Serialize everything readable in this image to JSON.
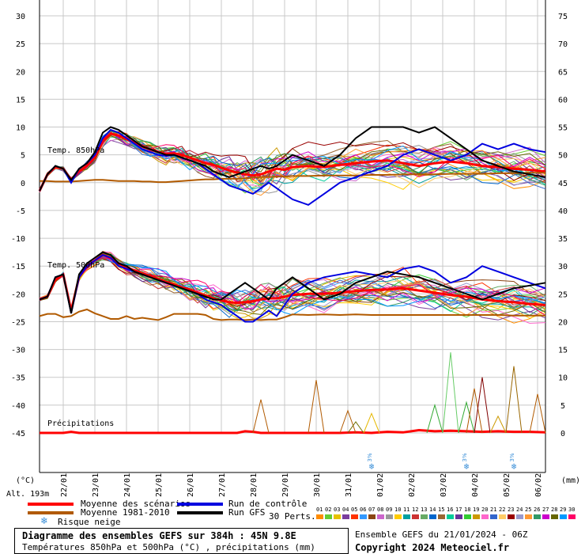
{
  "chart_data": {
    "type": "line",
    "title": "Diagramme des ensembles GEFS sur 384h : 45N 9.8E",
    "subtitle": "Températures 850hPa et 500hPa (°C) , précipitations (mm)",
    "left_unit": "(°C)",
    "right_unit": "(mm)",
    "altitude": "Alt. 193m",
    "x_dates": [
      "22/01",
      "23/01",
      "24/01",
      "25/01",
      "26/01",
      "27/01",
      "28/01",
      "29/01",
      "30/01",
      "31/01",
      "01/02",
      "02/02",
      "03/02",
      "04/02",
      "05/02",
      "06/02"
    ],
    "ylim": [
      -45,
      30
    ],
    "left_ticks": [
      "30",
      "25",
      "20",
      "15",
      "10",
      "5",
      "0",
      "-5",
      "-10",
      "-15",
      "-20",
      "-25",
      "-30",
      "-35",
      "-40",
      "-45"
    ],
    "right_ticks": [
      "75",
      "70",
      "65",
      "60",
      "55",
      "50",
      "45",
      "40",
      "35",
      "30",
      "25",
      "20",
      "15",
      "10",
      "5",
      "0"
    ],
    "panel_labels": [
      "Temp. 850hPa",
      "Temp. 500hPa",
      "Précipitations"
    ],
    "x_hours": [
      0,
      6,
      12,
      18,
      24,
      30,
      36,
      42,
      48,
      54,
      60,
      66,
      72,
      78,
      84,
      90,
      96,
      102,
      108,
      114,
      120,
      126,
      132,
      138,
      144,
      150,
      156,
      162,
      168,
      174,
      180,
      186,
      192,
      204,
      216,
      228,
      240,
      252,
      264,
      276,
      288,
      300,
      312,
      324,
      336,
      348,
      360,
      372,
      384
    ],
    "series": [
      {
        "name": "Moyenne des scénarios 850",
        "color": "#ff0000",
        "values": [
          -1.5,
          1.5,
          2.8,
          2.5,
          0.5,
          2,
          3,
          4.5,
          7.5,
          8.8,
          8.5,
          7.8,
          7.2,
          6.5,
          6,
          5.5,
          5.2,
          5.3,
          5,
          4.5,
          4,
          3.5,
          3.2,
          2.7,
          2.2,
          1.8,
          1.5,
          1.3,
          1.5,
          2,
          2.5,
          2.3,
          2.8,
          3.0,
          2.8,
          3.2,
          3.5,
          3.8,
          4.0,
          3.5,
          3.0,
          3.5,
          3.8,
          3.5,
          3.0,
          2.8,
          2.5,
          2.3,
          2.0
        ]
      },
      {
        "name": "Moyenne 1981-2010 850",
        "color": "#b15a00",
        "values": [
          0.3,
          0.3,
          0.2,
          0.2,
          0.2,
          0.3,
          0.4,
          0.5,
          0.5,
          0.4,
          0.3,
          0.3,
          0.3,
          0.2,
          0.2,
          0.1,
          0.1,
          0.2,
          0.3,
          0.4,
          0.5,
          0.6,
          0.6,
          0.7,
          0.7,
          0.7,
          0.8,
          0.9,
          1.0,
          1.0,
          1.1,
          1.1,
          1.2,
          1.2,
          1.3,
          1.3,
          1.3,
          1.4,
          1.4,
          1.5,
          1.5,
          1.5,
          1.6,
          1.6,
          1.6,
          1.7,
          1.7,
          1.8,
          1.8
        ]
      },
      {
        "name": "Run de contrôle 850",
        "color": "#0000e0",
        "values": [
          -1.5,
          1.5,
          3,
          2.5,
          0,
          2.5,
          3.5,
          5,
          8,
          9.5,
          9,
          8,
          7,
          6,
          5.5,
          5,
          4.8,
          5,
          4.5,
          4,
          3.5,
          2.5,
          1.5,
          0.5,
          -0.5,
          -1,
          -1.5,
          -2,
          -1,
          0,
          -1,
          -2,
          -3,
          -4,
          -2,
          0,
          1,
          2,
          3,
          5,
          6,
          5,
          4,
          5,
          7,
          6,
          7,
          6,
          5.5
        ]
      },
      {
        "name": "Run GFS 850",
        "color": "#000000",
        "values": [
          -1.5,
          1.5,
          3,
          2.5,
          0.5,
          2.5,
          3.5,
          5.5,
          9,
          10,
          9.5,
          8.5,
          7.5,
          6.5,
          6,
          5.5,
          5,
          5,
          4.5,
          4,
          3.5,
          3,
          2,
          1.5,
          1,
          1.5,
          2,
          2.5,
          3,
          2.5,
          3,
          4,
          5,
          4,
          3,
          5,
          8,
          10,
          10,
          10,
          9,
          10,
          8,
          6,
          4,
          3,
          2,
          1.5,
          1
        ]
      },
      {
        "name": "Moyenne des scénarios 500",
        "color": "#ff0000",
        "values": [
          -21,
          -20.5,
          -17.5,
          -16.5,
          -23,
          -17,
          -15,
          -14,
          -13,
          -13.5,
          -14.5,
          -15.2,
          -15.8,
          -16.3,
          -16.8,
          -17.3,
          -17.8,
          -18.3,
          -18.8,
          -19.2,
          -19.8,
          -20.3,
          -20.8,
          -21.2,
          -21.5,
          -21.6,
          -21.5,
          -21.3,
          -21.0,
          -20.8,
          -20.8,
          -20.5,
          -20.2,
          -20.0,
          -20.0,
          -19.8,
          -19.5,
          -19.3,
          -19.2,
          -19.0,
          -19.4,
          -19.8,
          -20.2,
          -20.5,
          -21.0,
          -21.3,
          -21.5,
          -21.8,
          -22.0
        ]
      },
      {
        "name": "Moyenne 1981-2010 500",
        "color": "#b15a00",
        "values": [
          -24,
          -23.6,
          -23.6,
          -24.2,
          -24.0,
          -23.2,
          -22.8,
          -23.5,
          -24.0,
          -24.5,
          -24.5,
          -24.0,
          -24.5,
          -24.3,
          -24.5,
          -24.7,
          -24.2,
          -23.6,
          -23.6,
          -23.6,
          -23.6,
          -23.8,
          -24.5,
          -24.7,
          -24.6,
          -24.6,
          -24.7,
          -24.6,
          -24.7,
          -24.6,
          -24.6,
          -24.2,
          -23.7,
          -23.8,
          -23.7,
          -23.8,
          -23.7,
          -23.8,
          -23.8,
          -23.8,
          -23.8,
          -23.8,
          -23.8,
          -23.8,
          -23.8,
          -23.8,
          -23.9,
          -23.9,
          -23.9
        ]
      },
      {
        "name": "Run de contrôle 500",
        "color": "#0000e0",
        "values": [
          -21,
          -20.5,
          -17,
          -16.5,
          -23.5,
          -17,
          -15,
          -14,
          -13,
          -13.5,
          -15,
          -15.5,
          -16,
          -16.5,
          -17,
          -17.5,
          -18,
          -18.5,
          -19,
          -19.5,
          -20,
          -21,
          -21.5,
          -22,
          -23,
          -24,
          -25,
          -25,
          -24,
          -23,
          -24,
          -22,
          -20,
          -18,
          -17,
          -16.5,
          -16,
          -16.5,
          -17,
          -15.5,
          -15,
          -16,
          -18,
          -17,
          -15,
          -16,
          -17,
          -18,
          -19
        ]
      },
      {
        "name": "Run GFS 500",
        "color": "#000000",
        "values": [
          -21,
          -20.5,
          -17,
          -16.5,
          -23.5,
          -16.5,
          -14.5,
          -13.5,
          -12.5,
          -13,
          -14.5,
          -15,
          -16,
          -16.5,
          -17,
          -17.5,
          -18,
          -18.5,
          -19,
          -19.5,
          -20,
          -20.5,
          -21,
          -21,
          -20,
          -19,
          -18,
          -19,
          -20,
          -21,
          -19,
          -18,
          -17,
          -19,
          -21,
          -20,
          -18,
          -17,
          -16,
          -16.5,
          -17,
          -18,
          -19,
          -20,
          -21,
          -20,
          -19,
          -18.5,
          -18
        ]
      },
      {
        "name": "Précipitations moyenne",
        "color": "#ff0000",
        "values": [
          0,
          0,
          0,
          0,
          0.2,
          0,
          0,
          0,
          0,
          0,
          0,
          0,
          0,
          0,
          0,
          0,
          0,
          0,
          0,
          0,
          0,
          0,
          0,
          0,
          0,
          0,
          0.3,
          0.2,
          0,
          0,
          0,
          0,
          0,
          0,
          0,
          0,
          0.1,
          0,
          0.2,
          0.1,
          0.5,
          0.3,
          0.4,
          0.3,
          0.2,
          0.3,
          0.2,
          0.2,
          0.1
        ]
      }
    ],
    "precip_spikes": [
      {
        "hour": 168,
        "mm": 6,
        "color": "#b15a00"
      },
      {
        "hour": 210,
        "mm": 9.5,
        "color": "#b15a00"
      },
      {
        "hour": 234,
        "mm": 4,
        "color": "#b15a00"
      },
      {
        "hour": 240,
        "mm": 2,
        "color": "#6e6e00"
      },
      {
        "hour": 252,
        "mm": 3.5,
        "color": "#e6b800"
      },
      {
        "hour": 300,
        "mm": 5,
        "color": "#33aa33"
      },
      {
        "hour": 312,
        "mm": 14.5,
        "color": "#66cc66"
      },
      {
        "hour": 324,
        "mm": 5.5,
        "color": "#33aa33"
      },
      {
        "hour": 330,
        "mm": 8,
        "color": "#b15a00"
      },
      {
        "hour": 336,
        "mm": 10,
        "color": "#800000"
      },
      {
        "hour": 348,
        "mm": 3,
        "color": "#cc9900"
      },
      {
        "hour": 360,
        "mm": 12,
        "color": "#996600"
      },
      {
        "hour": 378,
        "mm": 7,
        "color": "#b15a00"
      }
    ],
    "snow_risk_hours": [
      252,
      324,
      360
    ],
    "snow_label": "3%",
    "perturbation_colors": [
      "#ff8c00",
      "#66cc33",
      "#e6c200",
      "#7a3e9d",
      "#ff3300",
      "#3399ff",
      "#8b4513",
      "#cc66cc",
      "#999999",
      "#ffcc00",
      "#00a0a0",
      "#cc3333",
      "#66aa66",
      "#0066cc",
      "#996633",
      "#00cc99",
      "#663399",
      "#33cc33",
      "#cc9900",
      "#ff66cc",
      "#3366cc",
      "#ffcc66",
      "#990000",
      "#9999cc",
      "#ff9933",
      "#339966",
      "#cc00cc",
      "#666600",
      "#0099ff",
      "#ff0066"
    ]
  },
  "legend": {
    "mean": "Moyenne des scénarios",
    "clim": "Moyenne 1981-2010",
    "snow": "Risque neige",
    "control": "Run de contrôle",
    "gfs": "Run GFS",
    "perts": "30 Perts.",
    "pert_numbers": [
      "01",
      "02",
      "03",
      "04",
      "05",
      "06",
      "07",
      "08",
      "09",
      "10",
      "11",
      "12",
      "13",
      "14",
      "15",
      "16",
      "17",
      "18",
      "19",
      "20",
      "21",
      "22",
      "23",
      "24",
      "25",
      "26",
      "27",
      "28",
      "29",
      "30"
    ]
  },
  "footer": {
    "title": "Diagramme des ensembles GEFS sur 384h : 45N 9.8E",
    "subtitle": "Températures 850hPa et 500hPa (°C) , précipitations (mm)",
    "ensemble": "Ensemble GEFS du 21/01/2024 - 06Z",
    "copyright": "Copyright 2024 Meteociel.fr"
  },
  "colors": {
    "mean": "#ff0000",
    "clim": "#b15a00",
    "control": "#0000e0",
    "gfs": "#000000",
    "grid": "#c8c8c8",
    "snow": "#3a8fd8"
  }
}
